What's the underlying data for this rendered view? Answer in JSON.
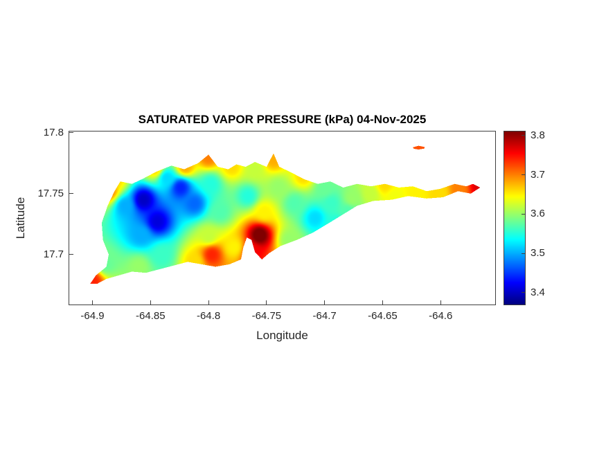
{
  "figure": {
    "title": "SATURATED VAPOR PRESSURE (kPa) 04-Nov-2025",
    "xlabel": "Longitude",
    "ylabel": "Latitude"
  },
  "chart_data": {
    "type": "heatmap",
    "title": "SATURATED VAPOR PRESSURE (kPa) 04-Nov-2025",
    "xlabel": "Longitude",
    "ylabel": "Latitude",
    "xlim": [
      -64.92,
      -64.553
    ],
    "ylim": [
      17.659,
      17.801
    ],
    "x_ticks": [
      -64.9,
      -64.85,
      -64.8,
      -64.75,
      -64.7,
      -64.65,
      -64.6
    ],
    "x_tick_labels": [
      "-64.9",
      "-64.85",
      "-64.8",
      "-64.75",
      "-64.7",
      "-64.65",
      "-64.6"
    ],
    "y_ticks": [
      17.8,
      17.75,
      17.7
    ],
    "y_tick_labels": [
      "17.8",
      "17.75",
      "17.7"
    ],
    "grid": false,
    "legend": "colorbar-right",
    "colormap": "jet",
    "clim": [
      3.37,
      3.81
    ],
    "colorbar_ticks": [
      3.8,
      3.7,
      3.6,
      3.5,
      3.4
    ],
    "colorbar_tick_labels": [
      "3.8",
      "3.7",
      "3.6",
      "3.5",
      "3.4"
    ],
    "idw_power": 3,
    "island_outline": [
      [
        -64.902,
        17.676
      ],
      [
        -64.897,
        17.683
      ],
      [
        -64.888,
        17.69
      ],
      [
        -64.886,
        17.7
      ],
      [
        -64.891,
        17.712
      ],
      [
        -64.892,
        17.726
      ],
      [
        -64.887,
        17.74
      ],
      [
        -64.881,
        17.752
      ],
      [
        -64.876,
        17.76
      ],
      [
        -64.866,
        17.758
      ],
      [
        -64.857,
        17.762
      ],
      [
        -64.845,
        17.768
      ],
      [
        -64.832,
        17.773
      ],
      [
        -64.821,
        17.77
      ],
      [
        -64.809,
        17.775
      ],
      [
        -64.8,
        17.782
      ],
      [
        -64.792,
        17.772
      ],
      [
        -64.783,
        17.77
      ],
      [
        -64.776,
        17.774
      ],
      [
        -64.768,
        17.772
      ],
      [
        -64.76,
        17.776
      ],
      [
        -64.75,
        17.772
      ],
      [
        -64.744,
        17.783
      ],
      [
        -64.739,
        17.772
      ],
      [
        -64.73,
        17.768
      ],
      [
        -64.718,
        17.762
      ],
      [
        -64.706,
        17.758
      ],
      [
        -64.695,
        17.76
      ],
      [
        -64.684,
        17.755
      ],
      [
        -64.672,
        17.758
      ],
      [
        -64.66,
        17.756
      ],
      [
        -64.648,
        17.758
      ],
      [
        -64.636,
        17.755
      ],
      [
        -64.624,
        17.756
      ],
      [
        -64.612,
        17.752
      ],
      [
        -64.6,
        17.754
      ],
      [
        -64.588,
        17.758
      ],
      [
        -64.578,
        17.756
      ],
      [
        -64.572,
        17.758
      ],
      [
        -64.566,
        17.755
      ],
      [
        -64.574,
        17.75
      ],
      [
        -64.585,
        17.752
      ],
      [
        -64.598,
        17.747
      ],
      [
        -64.612,
        17.746
      ],
      [
        -64.628,
        17.748
      ],
      [
        -64.642,
        17.745
      ],
      [
        -64.658,
        17.744
      ],
      [
        -64.672,
        17.74
      ],
      [
        -64.684,
        17.733
      ],
      [
        -64.696,
        17.726
      ],
      [
        -64.71,
        17.718
      ],
      [
        -64.724,
        17.712
      ],
      [
        -64.738,
        17.707
      ],
      [
        -64.748,
        17.701
      ],
      [
        -64.754,
        17.696
      ],
      [
        -64.76,
        17.702
      ],
      [
        -64.763,
        17.712
      ],
      [
        -64.767,
        17.714
      ],
      [
        -64.77,
        17.706
      ],
      [
        -64.772,
        17.696
      ],
      [
        -64.782,
        17.692
      ],
      [
        -64.794,
        17.69
      ],
      [
        -64.806,
        17.692
      ],
      [
        -64.818,
        17.694
      ],
      [
        -64.83,
        17.691
      ],
      [
        -64.842,
        17.688
      ],
      [
        -64.854,
        17.685
      ],
      [
        -64.866,
        17.686
      ],
      [
        -64.877,
        17.683
      ],
      [
        -64.888,
        17.68
      ],
      [
        -64.896,
        17.676
      ]
    ],
    "islet_outline": [
      [
        -64.624,
        17.788
      ],
      [
        -64.619,
        17.7893
      ],
      [
        -64.614,
        17.7883
      ],
      [
        -64.614,
        17.787
      ],
      [
        -64.619,
        17.7862
      ],
      [
        -64.623,
        17.7868
      ]
    ],
    "samples_format": [
      "lon",
      "lat",
      "value_kPa"
    ],
    "samples": [
      [
        -64.9,
        17.678,
        3.74
      ],
      [
        -64.888,
        17.692,
        3.58
      ],
      [
        -64.886,
        17.752,
        3.7
      ],
      [
        -64.88,
        17.762,
        3.66
      ],
      [
        -64.872,
        17.74,
        3.5
      ],
      [
        -64.856,
        17.745,
        3.4
      ],
      [
        -64.844,
        17.727,
        3.41
      ],
      [
        -64.858,
        17.716,
        3.5
      ],
      [
        -64.84,
        17.7,
        3.56
      ],
      [
        -64.86,
        17.69,
        3.6
      ],
      [
        -64.824,
        17.755,
        3.44
      ],
      [
        -64.812,
        17.742,
        3.47
      ],
      [
        -64.836,
        17.763,
        3.52
      ],
      [
        -64.846,
        17.77,
        3.66
      ],
      [
        -64.82,
        17.772,
        3.68
      ],
      [
        -64.8,
        17.78,
        3.7
      ],
      [
        -64.78,
        17.772,
        3.66
      ],
      [
        -64.798,
        17.758,
        3.55
      ],
      [
        -64.79,
        17.735,
        3.57
      ],
      [
        -64.8,
        17.715,
        3.62
      ],
      [
        -64.797,
        17.7,
        3.74
      ],
      [
        -64.812,
        17.694,
        3.66
      ],
      [
        -64.778,
        17.706,
        3.65
      ],
      [
        -64.756,
        17.716,
        3.82
      ],
      [
        -64.762,
        17.702,
        3.76
      ],
      [
        -64.752,
        17.735,
        3.65
      ],
      [
        -64.766,
        17.748,
        3.55
      ],
      [
        -64.76,
        17.77,
        3.62
      ],
      [
        -64.744,
        17.778,
        3.68
      ],
      [
        -64.74,
        17.755,
        3.6
      ],
      [
        -64.726,
        17.742,
        3.57
      ],
      [
        -64.718,
        17.764,
        3.66
      ],
      [
        -64.708,
        17.73,
        3.52
      ],
      [
        -64.7,
        17.754,
        3.58
      ],
      [
        -64.694,
        17.742,
        3.56
      ],
      [
        -64.69,
        17.726,
        3.55
      ],
      [
        -64.68,
        17.735,
        3.57
      ],
      [
        -64.676,
        17.746,
        3.6
      ],
      [
        -64.66,
        17.75,
        3.62
      ],
      [
        -64.648,
        17.757,
        3.66
      ],
      [
        -64.64,
        17.748,
        3.64
      ],
      [
        -64.62,
        17.75,
        3.65
      ],
      [
        -64.6,
        17.75,
        3.66
      ],
      [
        -64.584,
        17.753,
        3.7
      ],
      [
        -64.566,
        17.756,
        3.77
      ],
      [
        -64.73,
        17.712,
        3.6
      ],
      [
        -64.621,
        17.788,
        3.72
      ]
    ]
  }
}
